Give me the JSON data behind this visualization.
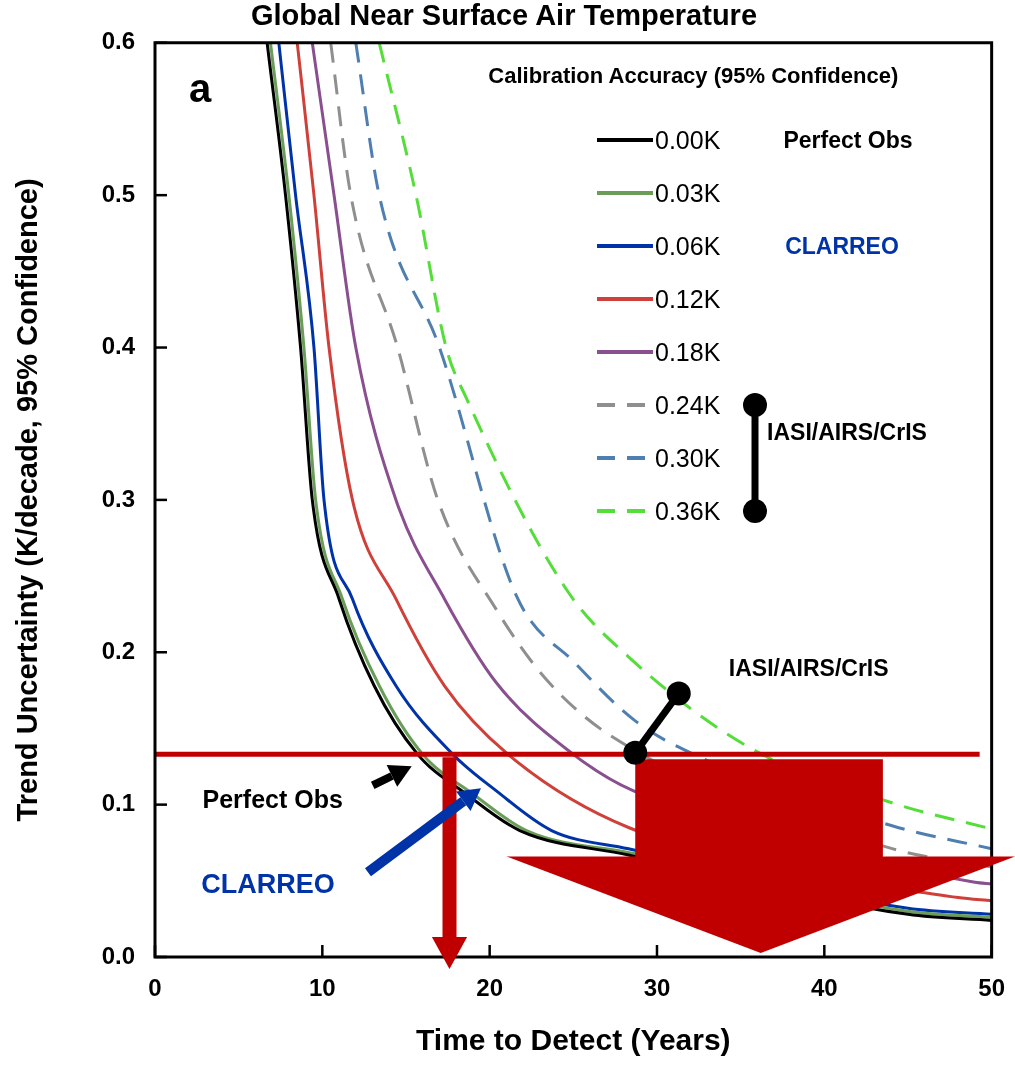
{
  "chart_data": {
    "type": "line",
    "title": "Global Near Surface Air Temperature",
    "xlabel": "Time to Detect (Years)",
    "ylabel": "Trend Uncertainty (K/decade, 95% Confidence)",
    "legend_title": "Calibration Accuracy (95% Confidence)",
    "xlim": [
      0,
      50
    ],
    "xticks": [
      0,
      10,
      20,
      30,
      40,
      50
    ],
    "ylim": [
      0,
      0.6
    ],
    "yticks": [
      {
        "value": 0,
        "label": "0.0"
      },
      0.1,
      0.2,
      0.3,
      0.4,
      0.5,
      0.6
    ],
    "legend": "top right",
    "marker": "none",
    "series": [
      {
        "name": "0.00K",
        "color": "#000000",
        "line_style": "solid",
        "x": [
          6.7,
          7.8,
          8.7,
          9.4,
          11.0,
          13.1,
          15.7,
          18.6,
          21.8,
          28.3,
          45,
          50
        ],
        "values": [
          0.6,
          0.5,
          0.4,
          0.3,
          0.235,
          0.178,
          0.133,
          0.107,
          0.083,
          0.067,
          0.028,
          0.024
        ]
      },
      {
        "name": "0.03K",
        "color": "#6a9e58",
        "line_style": "solid",
        "x": [
          6.9,
          8.0,
          8.9,
          9.6,
          11.2,
          13.4,
          16.0,
          19.0,
          22.2,
          28.6,
          45,
          50
        ],
        "values": [
          0.6,
          0.5,
          0.4,
          0.3,
          0.235,
          0.178,
          0.133,
          0.107,
          0.083,
          0.068,
          0.03,
          0.026
        ]
      },
      {
        "name": "0.06K",
        "color": "#0033a8",
        "line_style": "solid",
        "x": [
          7.4,
          8.4,
          9.5,
          10.1,
          11.8,
          14.4,
          17.8,
          20.4,
          23.7,
          28.3,
          45,
          50
        ],
        "values": [
          0.6,
          0.5,
          0.4,
          0.3,
          0.235,
          0.178,
          0.133,
          0.109,
          0.083,
          0.071,
          0.032,
          0.028
        ]
      },
      {
        "name": "0.12K",
        "color": "#d0403a",
        "line_style": "solid",
        "x": [
          8.5,
          9.5,
          10.4,
          11.8,
          14.4,
          17.3,
          21.1,
          28.3,
          48,
          50
        ],
        "values": [
          0.6,
          0.5,
          0.4,
          0.3,
          0.235,
          0.178,
          0.133,
          0.085,
          0.039,
          0.037
        ]
      },
      {
        "name": "0.18K",
        "color": "#8a4f8f",
        "line_style": "solid",
        "x": [
          9.4,
          10.7,
          12.0,
          14.4,
          17.3,
          20.4,
          25.0,
          28.6,
          49,
          50
        ],
        "values": [
          0.6,
          0.5,
          0.4,
          0.3,
          0.235,
          0.18,
          0.133,
          0.109,
          0.049,
          0.048
        ]
      },
      {
        "name": "0.24K",
        "color": "#8f8f8f",
        "line_style": "dashed",
        "x": [
          10.5,
          11.7,
          14.5,
          16.9,
          20.4,
          23.4,
          27.4,
          44.1,
          50
        ],
        "values": [
          0.6,
          0.5,
          0.4,
          0.3,
          0.228,
          0.182,
          0.144,
          0.071,
          0.059
        ]
      },
      {
        "name": "0.30K",
        "color": "#4f7fb0",
        "line_style": "dashed",
        "x": [
          12.0,
          13.4,
          17.0,
          21.6,
          25.1,
          28.7,
          32.2,
          44.1,
          50
        ],
        "values": [
          0.6,
          0.5,
          0.4,
          0.237,
          0.193,
          0.155,
          0.133,
          0.086,
          0.071
        ]
      },
      {
        "name": "0.36K",
        "color": "#55dd3a",
        "line_style": "dashed",
        "x": [
          13.4,
          15.6,
          17.4,
          18.6,
          24.6,
          28.3,
          35.6,
          44.1,
          50
        ],
        "values": [
          0.6,
          0.5,
          0.4,
          0.367,
          0.241,
          0.197,
          0.137,
          0.101,
          0.084
        ]
      }
    ],
    "ref_lines": [
      {
        "axis": "y",
        "value": 0.133,
        "color": "#c00000",
        "line_style": "solid"
      }
    ],
    "annotations": [
      "a",
      "Perfect Obs",
      "CLARREO",
      "IASI/AIRS/CrIS",
      "Perfect Obs",
      "CLARREO",
      "IASI/AIRS/CrIS"
    ]
  }
}
